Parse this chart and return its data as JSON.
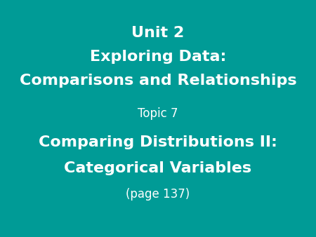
{
  "background_color": "#009B96",
  "text_color": "#ffffff",
  "line1": "Unit 2",
  "line2": "Exploring Data:",
  "line3": "Comparisons and Relationships",
  "line4": "Topic 7",
  "line5": "Comparing Distributions II:",
  "line6": "Categorical Variables",
  "line7": "(page 137)",
  "line1_fontsize": 16,
  "line2_fontsize": 16,
  "line3_fontsize": 16,
  "line4_fontsize": 12,
  "line5_fontsize": 16,
  "line6_fontsize": 16,
  "line7_fontsize": 12,
  "line1_bold": true,
  "line2_bold": true,
  "line3_bold": true,
  "line4_bold": false,
  "line5_bold": true,
  "line6_bold": true,
  "line7_bold": false,
  "figwidth": 4.5,
  "figheight": 3.38,
  "dpi": 100
}
